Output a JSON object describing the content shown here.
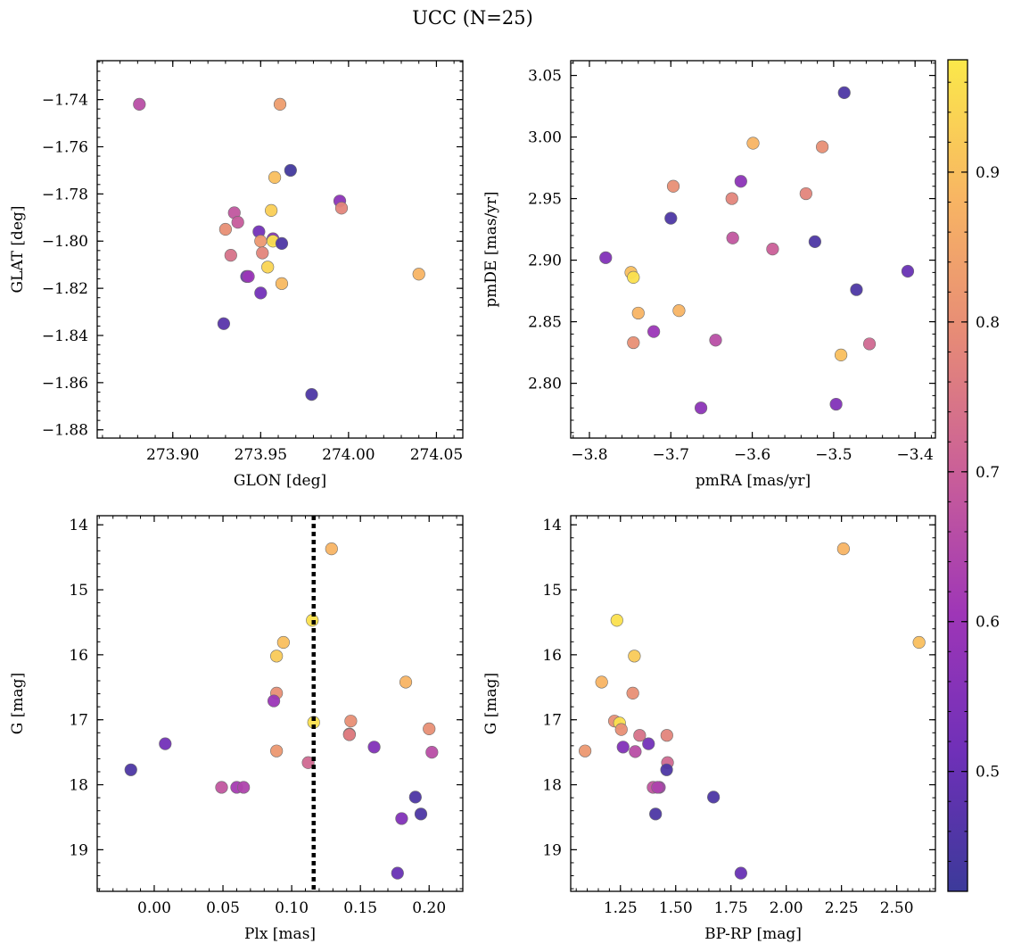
{
  "figure": {
    "title": "UCC (N=25)"
  },
  "colorbar": {
    "ticks": [
      "0.5",
      "0.6",
      "0.7",
      "0.8",
      "0.9"
    ],
    "tick_values": [
      0.5,
      0.6,
      0.7,
      0.8,
      0.9
    ],
    "range": [
      0.42,
      0.975
    ],
    "colormap": "plasma",
    "stops": [
      "#3c3a9a",
      "#6f30b8",
      "#9e36b7",
      "#c95e99",
      "#e68a77",
      "#f8b563",
      "#fbe84a"
    ]
  },
  "chart_data": [
    {
      "id": "glon_glat",
      "type": "scatter",
      "xlabel": "GLON [deg]",
      "ylabel": "GLAT [deg]",
      "xlim": [
        273.857,
        274.065
      ],
      "ylim": [
        -1.8835,
        -1.7235
      ],
      "xticks": [
        273.9,
        273.95,
        274.0,
        274.05
      ],
      "xtick_labels": [
        "273.90",
        "273.95",
        "274.00",
        "274.05"
      ],
      "yticks": [
        -1.88,
        -1.86,
        -1.84,
        -1.82,
        -1.8,
        -1.78,
        -1.76,
        -1.74
      ],
      "ytick_labels": [
        "−1.88",
        "−1.86",
        "−1.84",
        "−1.82",
        "−1.80",
        "−1.78",
        "−1.76",
        "−1.74"
      ],
      "points": [
        {
          "x": 273.881,
          "y": -1.742,
          "c": 0.66
        },
        {
          "x": 273.961,
          "y": -1.742,
          "c": 0.83
        },
        {
          "x": 273.967,
          "y": -1.77,
          "c": 0.43
        },
        {
          "x": 273.958,
          "y": -1.773,
          "c": 0.9
        },
        {
          "x": 273.995,
          "y": -1.783,
          "c": 0.57
        },
        {
          "x": 273.996,
          "y": -1.786,
          "c": 0.78
        },
        {
          "x": 273.935,
          "y": -1.788,
          "c": 0.68
        },
        {
          "x": 273.956,
          "y": -1.787,
          "c": 0.93
        },
        {
          "x": 273.937,
          "y": -1.792,
          "c": 0.69
        },
        {
          "x": 273.93,
          "y": -1.795,
          "c": 0.8
        },
        {
          "x": 273.949,
          "y": -1.796,
          "c": 0.52
        },
        {
          "x": 273.957,
          "y": -1.799,
          "c": 0.56
        },
        {
          "x": 273.95,
          "y": -1.8,
          "c": 0.82
        },
        {
          "x": 273.957,
          "y": -1.8,
          "c": 0.96
        },
        {
          "x": 273.962,
          "y": -1.801,
          "c": 0.45
        },
        {
          "x": 273.951,
          "y": -1.805,
          "c": 0.78
        },
        {
          "x": 273.933,
          "y": -1.806,
          "c": 0.74
        },
        {
          "x": 273.954,
          "y": -1.811,
          "c": 0.94
        },
        {
          "x": 273.942,
          "y": -1.815,
          "c": 0.5
        },
        {
          "x": 273.943,
          "y": -1.815,
          "c": 0.6
        },
        {
          "x": 274.04,
          "y": -1.814,
          "c": 0.88
        },
        {
          "x": 273.962,
          "y": -1.818,
          "c": 0.89
        },
        {
          "x": 273.95,
          "y": -1.822,
          "c": 0.52
        },
        {
          "x": 273.929,
          "y": -1.835,
          "c": 0.47
        },
        {
          "x": 273.979,
          "y": -1.865,
          "c": 0.45
        }
      ]
    },
    {
      "id": "pmra_pmde",
      "type": "scatter",
      "xlabel": "pmRA [mas/yr]",
      "ylabel": "pmDE [mas/yr]",
      "xlim": [
        -3.823,
        -3.375
      ],
      "ylim": [
        2.7555,
        3.062
      ],
      "xticks": [
        -3.8,
        -3.7,
        -3.6,
        -3.5,
        -3.4
      ],
      "xtick_labels": [
        "−3.8",
        "−3.7",
        "−3.6",
        "−3.5",
        "−3.4"
      ],
      "yticks": [
        2.8,
        2.85,
        2.9,
        2.95,
        3.0,
        3.05
      ],
      "ytick_labels": [
        "2.80",
        "2.85",
        "2.90",
        "2.95",
        "3.00",
        "3.05"
      ],
      "points": [
        {
          "x": -3.487,
          "y": 3.036,
          "c": 0.45
        },
        {
          "x": -3.599,
          "y": 2.995,
          "c": 0.88
        },
        {
          "x": -3.514,
          "y": 2.992,
          "c": 0.8
        },
        {
          "x": -3.614,
          "y": 2.964,
          "c": 0.57
        },
        {
          "x": -3.697,
          "y": 2.96,
          "c": 0.8
        },
        {
          "x": -3.534,
          "y": 2.954,
          "c": 0.78
        },
        {
          "x": -3.625,
          "y": 2.95,
          "c": 0.78
        },
        {
          "x": -3.7,
          "y": 2.934,
          "c": 0.45
        },
        {
          "x": -3.624,
          "y": 2.918,
          "c": 0.68
        },
        {
          "x": -3.523,
          "y": 2.915,
          "c": 0.45
        },
        {
          "x": -3.575,
          "y": 2.909,
          "c": 0.7
        },
        {
          "x": -3.78,
          "y": 2.902,
          "c": 0.55
        },
        {
          "x": -3.409,
          "y": 2.891,
          "c": 0.5
        },
        {
          "x": -3.749,
          "y": 2.89,
          "c": 0.9
        },
        {
          "x": -3.746,
          "y": 2.886,
          "c": 0.96
        },
        {
          "x": -3.472,
          "y": 2.876,
          "c": 0.45
        },
        {
          "x": -3.69,
          "y": 2.859,
          "c": 0.88
        },
        {
          "x": -3.74,
          "y": 2.857,
          "c": 0.88
        },
        {
          "x": -3.721,
          "y": 2.842,
          "c": 0.6
        },
        {
          "x": -3.645,
          "y": 2.835,
          "c": 0.66
        },
        {
          "x": -3.746,
          "y": 2.833,
          "c": 0.8
        },
        {
          "x": -3.456,
          "y": 2.832,
          "c": 0.72
        },
        {
          "x": -3.491,
          "y": 2.823,
          "c": 0.9
        },
        {
          "x": -3.497,
          "y": 2.783,
          "c": 0.55
        },
        {
          "x": -3.663,
          "y": 2.78,
          "c": 0.57
        }
      ]
    },
    {
      "id": "plx_g",
      "type": "scatter",
      "xlabel": "Plx [mas]",
      "ylabel": "G [mag]",
      "xlim": [
        -0.0415,
        0.2245
      ],
      "ylim": [
        19.64,
        13.86
      ],
      "yinverted": true,
      "xticks": [
        0.0,
        0.05,
        0.1,
        0.15,
        0.2
      ],
      "xtick_labels": [
        "0.00",
        "0.05",
        "0.10",
        "0.15",
        "0.20"
      ],
      "yticks": [
        14,
        15,
        16,
        17,
        18,
        19
      ],
      "ytick_labels": [
        "14",
        "15",
        "16",
        "17",
        "18",
        "19"
      ],
      "vline": 0.116,
      "points": [
        {
          "x": 0.129,
          "y": 14.37,
          "c": 0.88
        },
        {
          "x": 0.115,
          "y": 15.47,
          "c": 0.96
        },
        {
          "x": 0.094,
          "y": 15.81,
          "c": 0.9
        },
        {
          "x": 0.089,
          "y": 16.02,
          "c": 0.92
        },
        {
          "x": 0.183,
          "y": 16.42,
          "c": 0.88
        },
        {
          "x": 0.089,
          "y": 16.59,
          "c": 0.8
        },
        {
          "x": 0.087,
          "y": 16.71,
          "c": 0.6
        },
        {
          "x": 0.143,
          "y": 17.02,
          "c": 0.8
        },
        {
          "x": 0.116,
          "y": 17.04,
          "c": 0.96
        },
        {
          "x": 0.2,
          "y": 17.14,
          "c": 0.8
        },
        {
          "x": 0.142,
          "y": 17.22,
          "c": 0.78
        },
        {
          "x": 0.142,
          "y": 17.23,
          "c": 0.76
        },
        {
          "x": 0.008,
          "y": 17.37,
          "c": 0.52
        },
        {
          "x": 0.16,
          "y": 17.42,
          "c": 0.55
        },
        {
          "x": 0.089,
          "y": 17.48,
          "c": 0.82
        },
        {
          "x": 0.202,
          "y": 17.5,
          "c": 0.66
        },
        {
          "x": 0.112,
          "y": 17.66,
          "c": 0.72
        },
        {
          "x": -0.017,
          "y": 17.77,
          "c": 0.45
        },
        {
          "x": 0.049,
          "y": 18.04,
          "c": 0.68
        },
        {
          "x": 0.06,
          "y": 18.04,
          "c": 0.62
        },
        {
          "x": 0.065,
          "y": 18.04,
          "c": 0.64
        },
        {
          "x": 0.19,
          "y": 18.19,
          "c": 0.45
        },
        {
          "x": 0.194,
          "y": 18.45,
          "c": 0.45
        },
        {
          "x": 0.18,
          "y": 18.52,
          "c": 0.55
        },
        {
          "x": 0.177,
          "y": 19.36,
          "c": 0.5
        }
      ]
    },
    {
      "id": "bprp_g",
      "type": "scatter",
      "xlabel": "BP-RP [mag]",
      "ylabel": "G [mag]",
      "xlim": [
        1.025,
        2.675
      ],
      "ylim": [
        19.64,
        13.86
      ],
      "yinverted": true,
      "xticks": [
        1.25,
        1.5,
        1.75,
        2.0,
        2.25,
        2.5
      ],
      "xtick_labels": [
        "1.25",
        "1.50",
        "1.75",
        "2.00",
        "2.25",
        "2.50"
      ],
      "yticks": [
        14,
        15,
        16,
        17,
        18,
        19
      ],
      "ytick_labels": [
        "14",
        "15",
        "16",
        "17",
        "18",
        "19"
      ],
      "points": [
        {
          "x": 2.259,
          "y": 14.37,
          "c": 0.88
        },
        {
          "x": 1.234,
          "y": 15.47,
          "c": 0.96
        },
        {
          "x": 2.601,
          "y": 15.81,
          "c": 0.9
        },
        {
          "x": 1.313,
          "y": 16.02,
          "c": 0.92
        },
        {
          "x": 1.165,
          "y": 16.42,
          "c": 0.88
        },
        {
          "x": 1.306,
          "y": 16.59,
          "c": 0.8
        },
        {
          "x": 1.223,
          "y": 17.02,
          "c": 0.8
        },
        {
          "x": 1.246,
          "y": 17.05,
          "c": 0.96
        },
        {
          "x": 1.254,
          "y": 17.15,
          "c": 0.8
        },
        {
          "x": 1.46,
          "y": 17.24,
          "c": 0.78
        },
        {
          "x": 1.337,
          "y": 17.24,
          "c": 0.74
        },
        {
          "x": 1.377,
          "y": 17.37,
          "c": 0.52
        },
        {
          "x": 1.262,
          "y": 17.42,
          "c": 0.55
        },
        {
          "x": 1.09,
          "y": 17.48,
          "c": 0.82
        },
        {
          "x": 1.317,
          "y": 17.49,
          "c": 0.66
        },
        {
          "x": 1.463,
          "y": 17.66,
          "c": 0.72
        },
        {
          "x": 1.459,
          "y": 17.77,
          "c": 0.45
        },
        {
          "x": 1.398,
          "y": 18.04,
          "c": 0.68
        },
        {
          "x": 1.426,
          "y": 18.04,
          "c": 0.62
        },
        {
          "x": 1.418,
          "y": 18.04,
          "c": 0.64
        },
        {
          "x": 1.671,
          "y": 18.19,
          "c": 0.45
        },
        {
          "x": 1.409,
          "y": 18.45,
          "c": 0.45
        },
        {
          "x": 1.795,
          "y": 19.36,
          "c": 0.5
        }
      ]
    }
  ]
}
